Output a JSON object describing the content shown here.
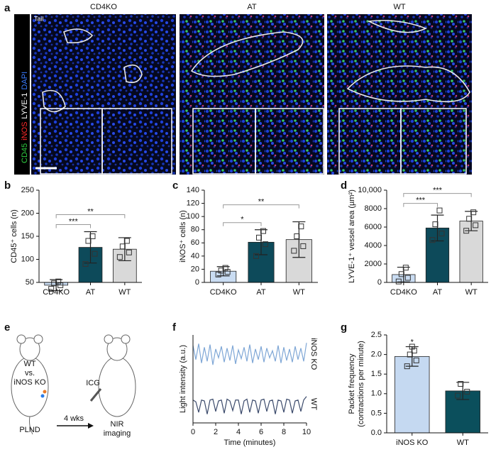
{
  "figure": {
    "panel_a": {
      "panel": "a",
      "groups": [
        "CD4KO",
        "AT",
        "WT"
      ],
      "region": "Tail",
      "stains": [
        {
          "name": "CD45",
          "color": "#2ecc40"
        },
        {
          "name": "iNOS",
          "color": "#ff2a2a"
        },
        {
          "name": "LYVE-1",
          "color": "#ffffff"
        },
        {
          "name": "DAPI",
          "color": "#3a7bff"
        }
      ]
    },
    "panel_e": {
      "panel": "e",
      "mouse_labels": [
        "WT",
        "vs.",
        "iNOS KO"
      ],
      "dye": "ICG",
      "start": "PLND",
      "interval": "4 wks",
      "end": [
        "NIR",
        "imaging"
      ]
    }
  },
  "chart_data": [
    {
      "type": "bar",
      "panel": "b",
      "ylabel": "CD45⁺ cells (n)",
      "categories": [
        "CD4KO",
        "AT",
        "WT"
      ],
      "colors": [
        "#c9dcf2",
        "#0d4a5a",
        "#d9d9d9"
      ],
      "values": [
        44,
        126,
        122
      ],
      "errors": [
        12,
        34,
        25
      ],
      "points": [
        [
          36,
          44,
          48,
          52
        ],
        [
          90,
          112,
          140,
          150
        ],
        [
          105,
          115,
          128,
          140
        ]
      ],
      "ylim": [
        50,
        250
      ],
      "yticks": [
        50,
        100,
        150,
        200,
        250
      ],
      "brackets": [
        {
          "pair": [
            0,
            1
          ],
          "label": "***"
        },
        {
          "pair": [
            0,
            2
          ],
          "label": "**"
        }
      ]
    },
    {
      "type": "bar",
      "panel": "c",
      "ylabel": "iNOS⁺ cells (n)",
      "categories": [
        "CD4KO",
        "AT",
        "WT"
      ],
      "colors": [
        "#c9dcf2",
        "#0d4a5a",
        "#d9d9d9"
      ],
      "values": [
        17,
        61,
        65
      ],
      "errors": [
        7,
        19,
        27
      ],
      "points": [
        [
          12,
          16,
          18,
          22
        ],
        [
          40,
          58,
          68,
          78
        ],
        [
          48,
          55,
          70,
          85
        ]
      ],
      "ylim": [
        0,
        140
      ],
      "yticks": [
        0,
        20,
        40,
        60,
        80,
        100,
        120,
        140
      ],
      "brackets": [
        {
          "pair": [
            0,
            1
          ],
          "label": "*"
        },
        {
          "pair": [
            0,
            2
          ],
          "label": "**"
        }
      ]
    },
    {
      "type": "bar",
      "panel": "d",
      "ylabel": "LYVE-1⁺ vessel area (µm²)",
      "categories": [
        "CD4KO",
        "AT",
        "WT"
      ],
      "colors": [
        "#c9dcf2",
        "#0d4a5a",
        "#d9d9d9"
      ],
      "values": [
        850,
        5900,
        6650
      ],
      "errors": [
        800,
        1400,
        1050
      ],
      "points": [
        [
          100,
          500,
          900,
          1600
        ],
        [
          4600,
          5300,
          6300,
          7800
        ],
        [
          5600,
          6200,
          6900,
          7600
        ]
      ],
      "ylim": [
        0,
        10000
      ],
      "yticks": [
        0,
        2000,
        4000,
        6000,
        8000,
        {
          "value": 10000,
          "label": "10,000"
        }
      ],
      "brackets": [
        {
          "pair": [
            0,
            1
          ],
          "label": "***"
        },
        {
          "pair": [
            0,
            2
          ],
          "label": "***"
        }
      ]
    },
    {
      "type": "line",
      "panel": "f",
      "xlabel": "Time (minutes)",
      "ylabel": "Light intensity (a.u.)",
      "x": [
        0,
        0.25,
        0.5,
        0.75,
        1,
        1.25,
        1.5,
        1.75,
        2,
        2.25,
        2.5,
        2.75,
        3,
        3.25,
        3.5,
        3.75,
        4,
        4.25,
        4.5,
        4.75,
        5,
        5.25,
        5.5,
        5.75,
        6,
        6.25,
        6.5,
        6.75,
        7,
        7.25,
        7.5,
        7.75,
        8,
        8.25,
        8.5,
        8.75,
        9,
        9.25,
        9.5,
        9.75,
        10
      ],
      "series": [
        {
          "name": "iNOS KO",
          "color": "#7fa7d6",
          "values": [
            8.8,
            7.2,
            9.0,
            6.8,
            8.6,
            7.0,
            8.9,
            6.6,
            8.4,
            7.4,
            8.7,
            6.9,
            8.5,
            7.1,
            8.8,
            6.7,
            8.3,
            7.3,
            8.6,
            7.0,
            8.9,
            6.8,
            8.4,
            7.2,
            8.7,
            6.9,
            8.5,
            7.4,
            8.2,
            7.0,
            8.8,
            6.8,
            8.6,
            7.1,
            8.4,
            6.9,
            8.7,
            7.2,
            8.5,
            7.0,
            9.1
          ]
        },
        {
          "name": "WT",
          "color": "#3b4a6b",
          "values": [
            2.6,
            2.4,
            1.2,
            2.6,
            2.5,
            1.0,
            2.6,
            2.7,
            1.3,
            2.5,
            2.6,
            1.1,
            2.7,
            2.5,
            1.4,
            2.6,
            2.6,
            1.0,
            2.5,
            2.7,
            1.2,
            2.6,
            2.5,
            1.1,
            2.6,
            2.7,
            1.3,
            2.5,
            2.6,
            1.0,
            2.6,
            2.5,
            1.2,
            2.7,
            2.6,
            1.1,
            2.5,
            2.6,
            1.3,
            2.6,
            3.0
          ]
        }
      ],
      "xlim": [
        0,
        10
      ],
      "xticks": [
        0,
        2,
        4,
        6,
        8,
        10
      ],
      "ylim": [
        0,
        10
      ]
    },
    {
      "type": "bar",
      "panel": "g",
      "ylabel": [
        "Packet frequency",
        "(contractions per minute)"
      ],
      "categories": [
        "iNOS KO",
        "WT"
      ],
      "colors": [
        "#c5d9f1",
        "#0b4f5c"
      ],
      "values": [
        1.95,
        1.07
      ],
      "errors": [
        0.25,
        0.22
      ],
      "points": [
        [
          1.7,
          1.85,
          2.0,
          2.1,
          2.2
        ],
        [
          0.95,
          1.05,
          1.25
        ]
      ],
      "ylim": [
        0,
        2.5
      ],
      "yticks": [
        {
          "value": 0,
          "label": "0.0"
        },
        {
          "value": 0.5,
          "label": "0.5"
        },
        {
          "value": 1,
          "label": "1.0"
        },
        {
          "value": 1.5,
          "label": "1.5"
        },
        {
          "value": 2,
          "label": "2.0"
        },
        {
          "value": 2.5,
          "label": "2.5"
        }
      ],
      "annotations": [
        {
          "category": 0,
          "label": "*"
        }
      ]
    }
  ]
}
